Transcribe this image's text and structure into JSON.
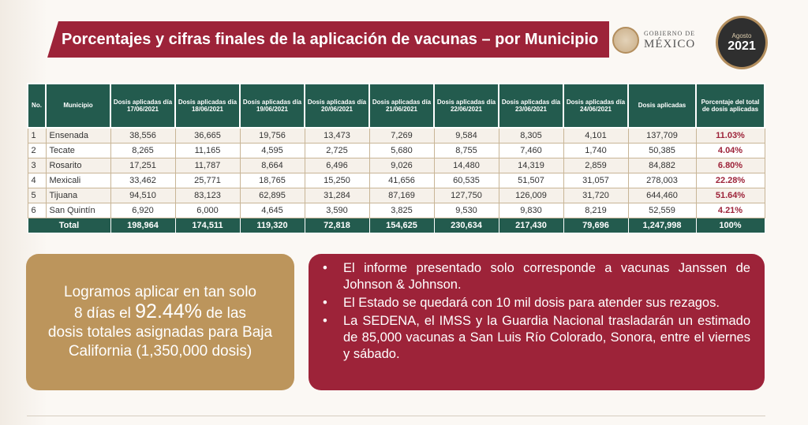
{
  "header": {
    "title": "Porcentajes y cifras finales de la aplicación de vacunas – por Municipio",
    "gob_small": "GOBIERNO DE",
    "gob_big": "MÉXICO",
    "year_small": "Agosto",
    "year": "2021"
  },
  "table": {
    "headers": [
      "No.",
      "Municipio",
      "Dosis aplicadas día 17/06/2021",
      "Dosis aplicadas día 18/06/2021",
      "Dosis aplicadas día 19/06/2021",
      "Dosis aplicadas día 20/06/2021",
      "Dosis aplicadas día 21/06/2021",
      "Dosis aplicadas día 22/06/2021",
      "Dosis aplicadas día 23/06/2021",
      "Dosis aplicadas día 24/06/2021",
      "Dosis aplicadas",
      "Porcentaje del total de dosis aplicadas"
    ],
    "rows": [
      [
        "1",
        "Ensenada",
        "38,556",
        "36,665",
        "19,756",
        "13,473",
        "7,269",
        "9,584",
        "8,305",
        "4,101",
        "137,709",
        "11.03%"
      ],
      [
        "2",
        "Tecate",
        "8,265",
        "11,165",
        "4,595",
        "2,725",
        "5,680",
        "8,755",
        "7,460",
        "1,740",
        "50,385",
        "4.04%"
      ],
      [
        "3",
        "Rosarito",
        "17,251",
        "11,787",
        "8,664",
        "6,496",
        "9,026",
        "14,480",
        "14,319",
        "2,859",
        "84,882",
        "6.80%"
      ],
      [
        "4",
        "Mexicali",
        "33,462",
        "25,771",
        "18,765",
        "15,250",
        "41,656",
        "60,535",
        "51,507",
        "31,057",
        "278,003",
        "22.28%"
      ],
      [
        "5",
        "Tijuana",
        "94,510",
        "83,123",
        "62,895",
        "31,284",
        "87,169",
        "127,750",
        "126,009",
        "31,720",
        "644,460",
        "51.64%"
      ],
      [
        "6",
        "San Quintín",
        "6,920",
        "6,000",
        "4,645",
        "3,590",
        "3,825",
        "9,530",
        "9,830",
        "8,219",
        "52,559",
        "4.21%"
      ]
    ],
    "total": [
      "Total",
      "198,964",
      "174,511",
      "119,320",
      "72,818",
      "154,625",
      "230,634",
      "217,430",
      "79,696",
      "1,247,998",
      "100%"
    ]
  },
  "left_box": {
    "line1": "Logramos aplicar en tan solo",
    "line2_pre": "8 días el ",
    "pct": "92.44%",
    "line2_post": " de las",
    "line3": "dosis totales asignadas para Baja California (1,350,000 dosis)"
  },
  "right_box": {
    "bullet": "•",
    "items": [
      "El informe presentado solo corresponde a vacunas Janssen de Johnson & Johnson.",
      "El Estado se quedará con 10 mil dosis para atender sus rezagos.",
      "La SEDENA, el IMSS y la Guardia Nacional trasladarán un estimado de 85,000 vacunas a San Luis Río Colorado, Sonora, entre el viernes y sábado."
    ]
  },
  "colors": {
    "guinda": "#9d2339",
    "verde": "#235b4e",
    "dorado": "#bc955c"
  }
}
